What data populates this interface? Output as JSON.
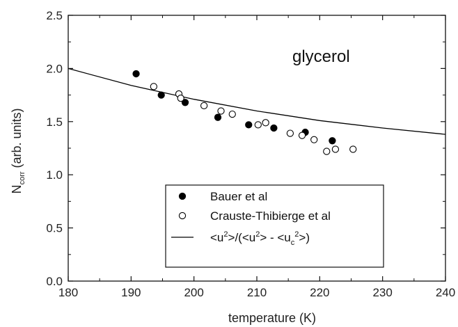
{
  "chart_data": {
    "type": "scatter",
    "title": "",
    "xlabel": "temperature (K)",
    "ylabel": {
      "base": "N",
      "sub": "corr",
      "rest": " (arb. units)"
    },
    "xlim": [
      180,
      240
    ],
    "ylim": [
      0.0,
      2.5
    ],
    "xticks": [
      180,
      190,
      200,
      210,
      220,
      230,
      240
    ],
    "yticks": [
      0.0,
      0.5,
      1.0,
      1.5,
      2.0,
      2.5
    ],
    "xtick_labels": [
      "180",
      "190",
      "200",
      "210",
      "220",
      "230",
      "240"
    ],
    "ytick_labels": [
      "0.0",
      "0.5",
      "1.0",
      "1.5",
      "2.0",
      "2.5"
    ],
    "grid": false,
    "legend_position": "bottom-center",
    "annotation": "glycerol",
    "series": [
      {
        "name": "Bauer et al",
        "marker": "filled-circle",
        "color": "#000000",
        "points": [
          {
            "x": 190.8,
            "y": 1.95
          },
          {
            "x": 194.8,
            "y": 1.75
          },
          {
            "x": 198.6,
            "y": 1.68
          },
          {
            "x": 203.8,
            "y": 1.54
          },
          {
            "x": 208.7,
            "y": 1.47
          },
          {
            "x": 212.7,
            "y": 1.44
          },
          {
            "x": 217.7,
            "y": 1.4
          },
          {
            "x": 222.0,
            "y": 1.32
          }
        ]
      },
      {
        "name": "Crauste-Thibierge et al",
        "marker": "open-circle",
        "color": "#000000",
        "points": [
          {
            "x": 193.6,
            "y": 1.83
          },
          {
            "x": 197.6,
            "y": 1.76
          },
          {
            "x": 197.9,
            "y": 1.72
          },
          {
            "x": 201.6,
            "y": 1.65
          },
          {
            "x": 204.3,
            "y": 1.6
          },
          {
            "x": 206.1,
            "y": 1.57
          },
          {
            "x": 210.2,
            "y": 1.47
          },
          {
            "x": 211.4,
            "y": 1.49
          },
          {
            "x": 215.3,
            "y": 1.39
          },
          {
            "x": 217.2,
            "y": 1.37
          },
          {
            "x": 219.1,
            "y": 1.33
          },
          {
            "x": 221.1,
            "y": 1.22
          },
          {
            "x": 222.5,
            "y": 1.24
          },
          {
            "x": 225.3,
            "y": 1.24
          }
        ]
      },
      {
        "name": "<u2>/(<u2> - <uc2>)",
        "marker": "line",
        "color": "#000000",
        "x": [
          180,
          190,
          200,
          210,
          220,
          230,
          240
        ],
        "y": [
          2.0,
          1.84,
          1.71,
          1.6,
          1.51,
          1.44,
          1.38
        ]
      }
    ],
    "legend": [
      {
        "type": "filled-circle",
        "parts": [
          {
            "t": "Bauer et al"
          }
        ]
      },
      {
        "type": "open-circle",
        "parts": [
          {
            "t": "Crauste-Thibierge et al"
          }
        ]
      },
      {
        "type": "line",
        "parts": [
          {
            "t": "<u"
          },
          {
            "t": "2",
            "sup": true
          },
          {
            "t": ">/(<u"
          },
          {
            "t": "2",
            "sup": true
          },
          {
            "t": "> - <u"
          },
          {
            "t": "c",
            "sub": true
          },
          {
            "t": "2",
            "sup": true
          },
          {
            "t": ">)"
          }
        ]
      }
    ]
  }
}
